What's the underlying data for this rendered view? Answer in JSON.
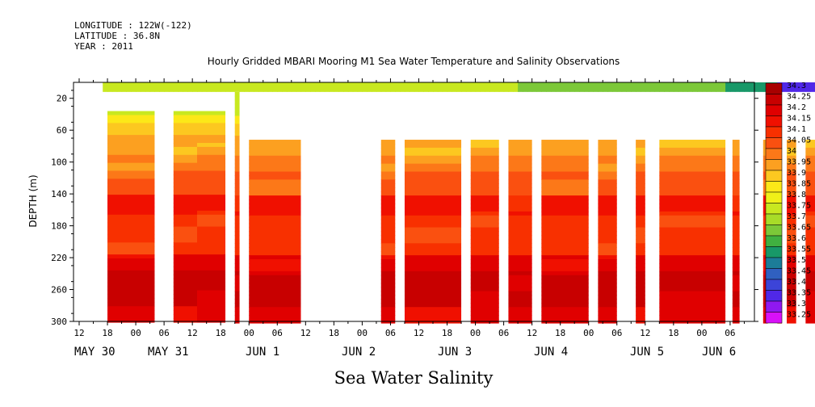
{
  "header": {
    "longitude": "LONGITUDE : 122W(-122)",
    "latitude": "LATITUDE : 36.8N",
    "year": "YEAR : 2011"
  },
  "chart_data": {
    "type": "heatmap",
    "title": "Hourly Gridded MBARI Mooring M1 Sea Water Temperature and Salinity Observations",
    "xlabel": "Sea Water Salinity",
    "ylabel": "DEPTH (m)",
    "x_range_hours": [
      -18,
      142
    ],
    "ylim": [
      300,
      0
    ],
    "y_ticks": [
      20,
      60,
      100,
      140,
      180,
      220,
      260,
      300
    ],
    "x_hour_labels": [
      {
        "h": -12,
        "label": "12"
      },
      {
        "h": -6,
        "label": "18"
      },
      {
        "h": 0,
        "label": "00"
      },
      {
        "h": 6,
        "label": "06"
      },
      {
        "h": 12,
        "label": "12"
      },
      {
        "h": 18,
        "label": "18"
      },
      {
        "h": 24,
        "label": "00"
      },
      {
        "h": 30,
        "label": "06"
      },
      {
        "h": 36,
        "label": "12"
      },
      {
        "h": 42,
        "label": "18"
      },
      {
        "h": 48,
        "label": "00"
      },
      {
        "h": 54,
        "label": "06"
      },
      {
        "h": 60,
        "label": "12"
      },
      {
        "h": 66,
        "label": "18"
      },
      {
        "h": 72,
        "label": "00"
      },
      {
        "h": 78,
        "label": "06"
      },
      {
        "h": 84,
        "label": "12"
      },
      {
        "h": 90,
        "label": "18"
      },
      {
        "h": 96,
        "label": "00"
      },
      {
        "h": 102,
        "label": "06"
      },
      {
        "h": 108,
        "label": "12"
      },
      {
        "h": 114,
        "label": "18"
      },
      {
        "h": 120,
        "label": "00"
      },
      {
        "h": 126,
        "label": "06"
      },
      {
        "h": 132,
        "label": "12"
      },
      {
        "h": 138,
        "label": "18"
      },
      {
        "h": 144,
        "label": "00"
      },
      {
        "h": 150,
        "label": "06"
      }
    ],
    "x_date_labels": [
      {
        "h": -18,
        "label": "MAY 30"
      },
      {
        "h": 6,
        "label": "MAY 31"
      },
      {
        "h": 54,
        "label": "JUN  1"
      },
      {
        "h": 78,
        "label": "JUN  2"
      },
      {
        "h": 102,
        "label": "JUN  3"
      },
      {
        "h": 126,
        "label": "JUN  4"
      },
      {
        "h": 150,
        "label": "JUN  5"
      },
      {
        "h": 168,
        "label": "JUN  6"
      }
    ],
    "legend": {
      "placement": "right",
      "levels": [
        "34.3",
        "34.25",
        "34.2",
        "34.15",
        "34.1",
        "34.05",
        "34",
        "33.95",
        "33.9",
        "33.85",
        "33.8",
        "33.75",
        "33.7",
        "33.65",
        "33.6",
        "33.55",
        "33.5",
        "33.45",
        "33.4",
        "33.35",
        "33.3",
        "33.25"
      ],
      "colors": [
        "#a80000",
        "#c80000",
        "#e00000",
        "#f01000",
        "#f83000",
        "#fa5010",
        "#fc7818",
        "#fca020",
        "#fcc820",
        "#fce818",
        "#f0f018",
        "#c8e820",
        "#a8dc28",
        "#7cc838",
        "#40b040",
        "#189868",
        "#1c7c98",
        "#3060c0",
        "#3c44d8",
        "#5028e8",
        "#9018f0",
        "#d810f8"
      ]
    }
  }
}
